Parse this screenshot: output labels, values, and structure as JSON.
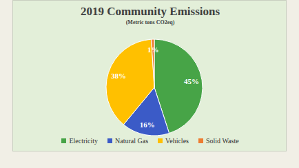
{
  "chart_data": {
    "type": "pie",
    "title": "2019 Community Emissions",
    "subtitle": "(Metric tons CO2eq)",
    "categories": [
      "Electricity",
      "Natural Gas",
      "Vehicles",
      "Solid Waste"
    ],
    "values": [
      45,
      16,
      38,
      1
    ],
    "value_labels": [
      "45%",
      "16%",
      "38%",
      "1%"
    ],
    "colors": [
      "#47a447",
      "#3b5bc7",
      "#ffc000",
      "#ed7d31"
    ],
    "data_labels": true,
    "legend": "bottom"
  }
}
